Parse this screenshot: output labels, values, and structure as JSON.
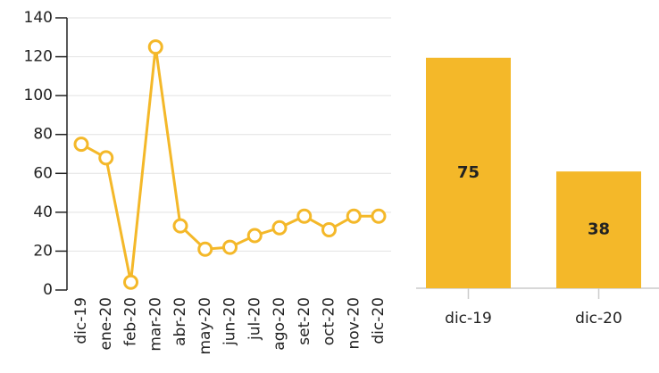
{
  "chart_data": [
    {
      "type": "line",
      "categories": [
        "dic-19",
        "ene-20",
        "feb-20",
        "mar-20",
        "abr-20",
        "may-20",
        "jun-20",
        "jul-20",
        "ago-20",
        "set-20",
        "oct-20",
        "nov-20",
        "dic-20"
      ],
      "values": [
        75,
        68,
        4,
        125,
        33,
        21,
        22,
        28,
        32,
        38,
        31,
        38,
        38
      ],
      "color": "#f4b829",
      "ylim": [
        0,
        140
      ],
      "yticks": [
        0,
        20,
        40,
        60,
        80,
        100,
        120,
        140
      ],
      "grid": true
    },
    {
      "type": "bar",
      "categories": [
        "dic-19",
        "dic-20"
      ],
      "values": [
        75,
        38
      ],
      "color": "#f4b829",
      "ylim": [
        0,
        88
      ]
    }
  ]
}
